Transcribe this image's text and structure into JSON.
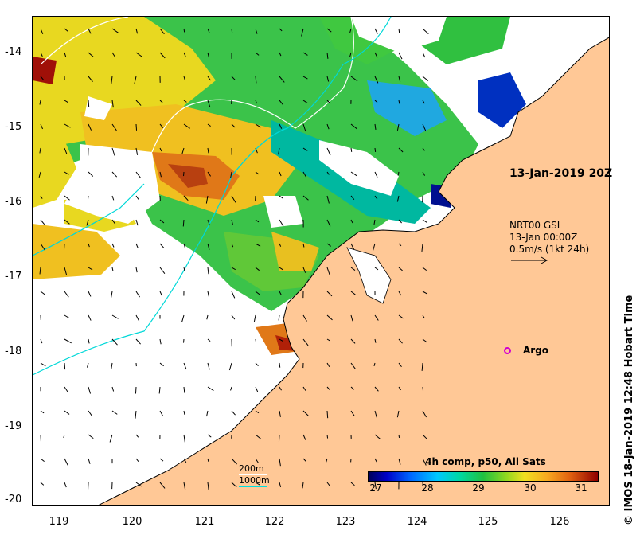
{
  "map": {
    "y_axis_ticks": [
      "-14",
      "-15",
      "-16",
      "-17",
      "-18",
      "-19",
      "-20"
    ],
    "x_axis_ticks": [
      "119",
      "120",
      "121",
      "122",
      "123",
      "124",
      "125",
      "126"
    ],
    "timestamp_label": "13-Jan-2019 20Z",
    "current_legend": {
      "line1": "NRT00 GSL",
      "line2": "13-Jan 00:00Z",
      "line3": "0.5m/s (1kt 24h)"
    },
    "argo_label": "Argo",
    "contour_key": {
      "label_200": "200m",
      "label_1000": "1000m",
      "color_200": "#ffffff",
      "color_1000": "#00e0e0"
    },
    "colorbar": {
      "title": "4h comp, p50, All Sats",
      "ticks": [
        "27",
        "28",
        "29",
        "30",
        "31"
      ]
    },
    "credit": "© IMOS 18-Jan-2019 12:48 Hobart Time",
    "colors": {
      "land": "#ffc896",
      "argo": "#d000d0",
      "sst_low": "#00005a",
      "sst_high": "#900000"
    }
  }
}
